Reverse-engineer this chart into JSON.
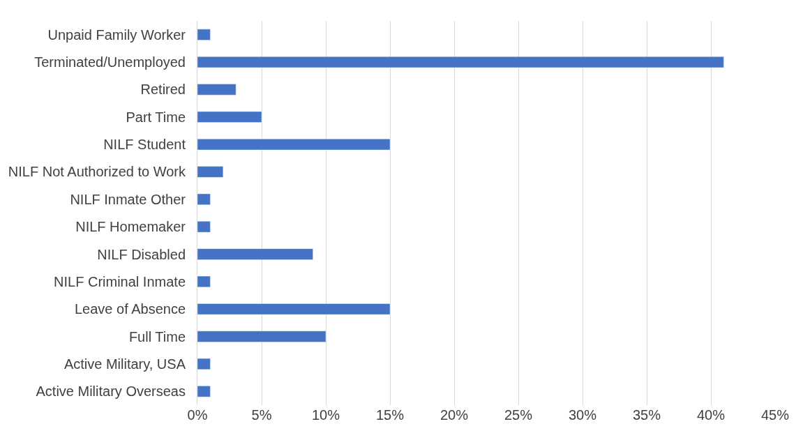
{
  "chart_data": {
    "type": "bar",
    "orientation": "horizontal",
    "categories": [
      "Unpaid Family Worker",
      "Terminated/Unemployed",
      "Retired",
      "Part Time",
      "NILF Student",
      "NILF Not Authorized to Work",
      "NILF Inmate Other",
      "NILF Homemaker",
      "NILF Disabled",
      "NILF Criminal Inmate",
      "Leave of Absence",
      "Full Time",
      "Active Military, USA",
      "Active Military Overseas"
    ],
    "values": [
      1,
      41,
      3,
      5,
      15,
      2,
      1,
      1,
      9,
      1,
      15,
      10,
      1,
      1
    ],
    "color": "#4472c4",
    "xlim": [
      0,
      45
    ],
    "xticks": [
      {
        "value": 0,
        "label": "0%"
      },
      {
        "value": 5,
        "label": "5%"
      },
      {
        "value": 10,
        "label": "10%"
      },
      {
        "value": 15,
        "label": "15%"
      },
      {
        "value": 20,
        "label": "20%"
      },
      {
        "value": 25,
        "label": "25%"
      },
      {
        "value": 30,
        "label": "30%"
      },
      {
        "value": 35,
        "label": "35%"
      },
      {
        "value": 40,
        "label": "40%"
      },
      {
        "value": 45,
        "label": "45%"
      }
    ],
    "grid": "x"
  }
}
